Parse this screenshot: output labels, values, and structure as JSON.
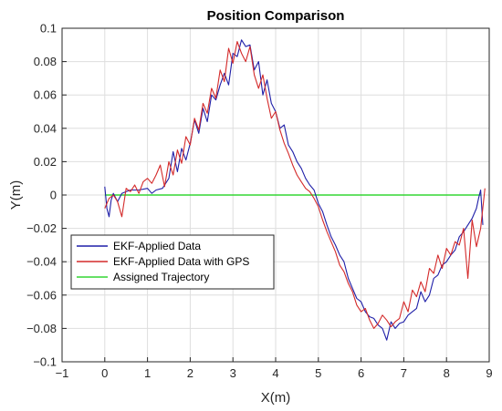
{
  "chart_data": {
    "type": "line",
    "title": "Position Comparison",
    "xlabel": "X(m)",
    "ylabel": "Y(m)",
    "xlim": [
      -1,
      9
    ],
    "ylim": [
      -0.1,
      0.1
    ],
    "xticks": [
      "−1",
      "0",
      "1",
      "2",
      "3",
      "4",
      "5",
      "6",
      "7",
      "8",
      "9"
    ],
    "yticks": [
      "0.1",
      "0.08",
      "0.06",
      "0.04",
      "0.02",
      "0",
      "−0.02",
      "−0.04",
      "−0.06",
      "−0.08",
      "−0.1"
    ],
    "grid": true,
    "legend_position": "lower-left",
    "series": [
      {
        "name": "EKF-Applied Data",
        "color": "#1f1fa8",
        "x": [
          0.0,
          0.05,
          0.1,
          0.15,
          0.2,
          0.3,
          0.4,
          0.5,
          0.6,
          0.8,
          1.0,
          1.1,
          1.2,
          1.35,
          1.5,
          1.6,
          1.7,
          1.8,
          1.9,
          2.0,
          2.1,
          2.2,
          2.3,
          2.4,
          2.5,
          2.6,
          2.7,
          2.8,
          2.9,
          3.0,
          3.1,
          3.2,
          3.3,
          3.4,
          3.5,
          3.6,
          3.7,
          3.8,
          3.9,
          4.0,
          4.1,
          4.2,
          4.3,
          4.4,
          4.5,
          4.6,
          4.7,
          4.8,
          4.9,
          5.0,
          5.1,
          5.2,
          5.3,
          5.4,
          5.5,
          5.6,
          5.7,
          5.8,
          5.9,
          6.0,
          6.1,
          6.2,
          6.3,
          6.4,
          6.5,
          6.6,
          6.7,
          6.8,
          6.9,
          7.0,
          7.1,
          7.2,
          7.3,
          7.4,
          7.5,
          7.6,
          7.7,
          7.8,
          7.9,
          8.0,
          8.1,
          8.2,
          8.3,
          8.4,
          8.5,
          8.6,
          8.7,
          8.75,
          8.8,
          8.85
        ],
        "y": [
          0.005,
          -0.008,
          -0.013,
          -0.003,
          0.001,
          -0.004,
          0.001,
          0.002,
          0.003,
          0.003,
          0.004,
          0.001,
          0.003,
          0.004,
          0.01,
          0.026,
          0.014,
          0.028,
          0.021,
          0.031,
          0.045,
          0.037,
          0.052,
          0.044,
          0.06,
          0.057,
          0.066,
          0.073,
          0.066,
          0.085,
          0.083,
          0.093,
          0.089,
          0.09,
          0.075,
          0.08,
          0.06,
          0.069,
          0.055,
          0.05,
          0.04,
          0.042,
          0.03,
          0.026,
          0.02,
          0.016,
          0.01,
          0.006,
          0.003,
          -0.005,
          -0.01,
          -0.018,
          -0.025,
          -0.03,
          -0.036,
          -0.04,
          -0.05,
          -0.056,
          -0.062,
          -0.064,
          -0.07,
          -0.073,
          -0.074,
          -0.078,
          -0.08,
          -0.087,
          -0.076,
          -0.08,
          -0.077,
          -0.076,
          -0.072,
          -0.07,
          -0.068,
          -0.058,
          -0.064,
          -0.06,
          -0.05,
          -0.048,
          -0.042,
          -0.04,
          -0.036,
          -0.033,
          -0.025,
          -0.022,
          -0.018,
          -0.014,
          -0.008,
          -0.002,
          0.003,
          -0.018
        ]
      },
      {
        "name": "EKF-Applied Data with GPS",
        "color": "#d42a2a",
        "x": [
          0.0,
          0.1,
          0.2,
          0.3,
          0.4,
          0.5,
          0.6,
          0.7,
          0.8,
          0.9,
          1.0,
          1.1,
          1.2,
          1.3,
          1.4,
          1.5,
          1.6,
          1.7,
          1.8,
          1.9,
          2.0,
          2.1,
          2.2,
          2.3,
          2.4,
          2.5,
          2.6,
          2.7,
          2.8,
          2.9,
          3.0,
          3.1,
          3.2,
          3.3,
          3.4,
          3.5,
          3.6,
          3.7,
          3.8,
          3.9,
          4.0,
          4.1,
          4.2,
          4.3,
          4.4,
          4.5,
          4.6,
          4.7,
          4.8,
          4.9,
          5.0,
          5.1,
          5.2,
          5.3,
          5.4,
          5.5,
          5.6,
          5.7,
          5.8,
          5.9,
          6.0,
          6.1,
          6.2,
          6.3,
          6.4,
          6.5,
          6.6,
          6.7,
          6.8,
          6.9,
          7.0,
          7.1,
          7.2,
          7.3,
          7.4,
          7.5,
          7.6,
          7.7,
          7.8,
          7.9,
          8.0,
          8.1,
          8.2,
          8.3,
          8.4,
          8.5,
          8.6,
          8.7,
          8.8,
          8.9
        ],
        "y": [
          -0.008,
          -0.002,
          0.0,
          -0.004,
          -0.013,
          0.004,
          0.002,
          0.006,
          0.001,
          0.008,
          0.01,
          0.007,
          0.012,
          0.018,
          0.005,
          0.02,
          0.012,
          0.027,
          0.019,
          0.035,
          0.03,
          0.046,
          0.039,
          0.055,
          0.049,
          0.064,
          0.058,
          0.075,
          0.068,
          0.088,
          0.079,
          0.092,
          0.085,
          0.08,
          0.089,
          0.072,
          0.064,
          0.072,
          0.058,
          0.046,
          0.05,
          0.039,
          0.031,
          0.025,
          0.018,
          0.012,
          0.008,
          0.004,
          0.002,
          -0.002,
          -0.007,
          -0.015,
          -0.022,
          -0.028,
          -0.034,
          -0.042,
          -0.046,
          -0.053,
          -0.058,
          -0.066,
          -0.07,
          -0.068,
          -0.075,
          -0.08,
          -0.077,
          -0.072,
          -0.075,
          -0.079,
          -0.076,
          -0.074,
          -0.064,
          -0.07,
          -0.057,
          -0.061,
          -0.052,
          -0.058,
          -0.044,
          -0.047,
          -0.036,
          -0.044,
          -0.032,
          -0.036,
          -0.028,
          -0.03,
          -0.02,
          -0.05,
          -0.015,
          -0.031,
          -0.02,
          0.004
        ]
      },
      {
        "name": "Assigned Trajectory",
        "color": "#33d633",
        "x": [
          0,
          8.8
        ],
        "y": [
          0,
          0
        ]
      }
    ]
  }
}
